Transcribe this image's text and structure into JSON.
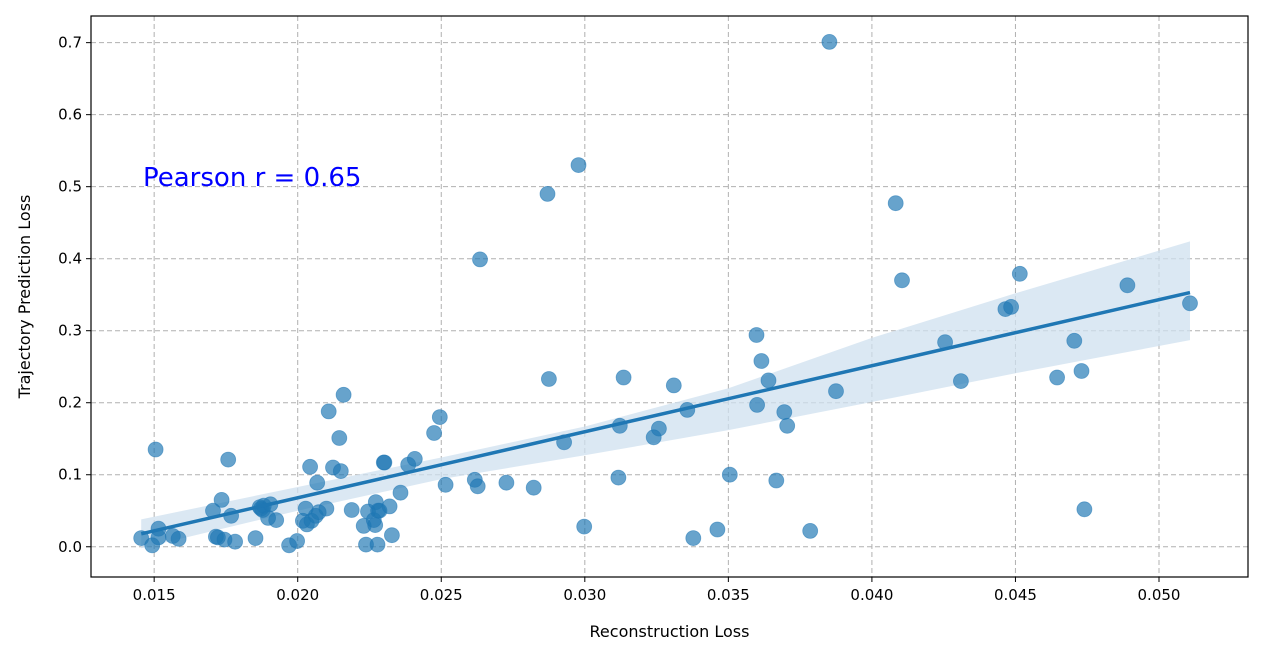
{
  "chart_data": {
    "type": "scatter",
    "title": "",
    "xlabel": "Reconstruction Loss",
    "ylabel": "Trajectory Prediction Loss",
    "xlim": [
      0.0128,
      0.0531
    ],
    "ylim": [
      -0.042,
      0.737
    ],
    "xticks": [
      "0.015",
      "0.020",
      "0.025",
      "0.030",
      "0.035",
      "0.040",
      "0.045",
      "0.050"
    ],
    "yticks": [
      "0.0",
      "0.1",
      "0.2",
      "0.3",
      "0.4",
      "0.5",
      "0.6",
      "0.7"
    ],
    "grid": true,
    "annotation": "Pearson r = 0.65",
    "colors": {
      "points": "#1f77b4",
      "regression_line": "#1f77b4",
      "confidence_band": "#cfe0ef",
      "annotation": "#0000ff",
      "grid": "#b0b0b0"
    },
    "series": [
      {
        "x": [
          0.01455,
          0.01493,
          0.01505,
          0.01515,
          0.01515,
          0.01565,
          0.01585,
          0.01705,
          0.01715,
          0.01722,
          0.01735,
          0.01745,
          0.01758,
          0.01768,
          0.01782,
          0.01853,
          0.01868,
          0.01872,
          0.01878,
          0.01882,
          0.01897,
          0.01905,
          0.01925,
          0.0197,
          0.01998,
          0.02018,
          0.02028,
          0.02032,
          0.02043,
          0.02048,
          0.02063,
          0.02068,
          0.02073,
          0.021,
          0.02108,
          0.02123,
          0.02145,
          0.0215,
          0.0216,
          0.02188,
          0.0223,
          0.02238,
          0.02245,
          0.02265,
          0.0227,
          0.02272,
          0.02278,
          0.0228,
          0.02285,
          0.023,
          0.02302,
          0.0232,
          0.02328,
          0.02358,
          0.02385,
          0.02408,
          0.02475,
          0.02495,
          0.02515,
          0.02617,
          0.02627,
          0.02635,
          0.02727,
          0.02822,
          0.0287,
          0.02875,
          0.02928,
          0.02978,
          0.02998,
          0.03117,
          0.03122,
          0.03135,
          0.0324,
          0.03258,
          0.0331,
          0.03357,
          0.03378,
          0.03462,
          0.03505,
          0.03598,
          0.036,
          0.03615,
          0.0364,
          0.03667,
          0.03695,
          0.03705,
          0.03785,
          0.03852,
          0.03875,
          0.04083,
          0.04105,
          0.04255,
          0.0431,
          0.04465,
          0.04485,
          0.04515,
          0.04645,
          0.04705,
          0.0473,
          0.0474,
          0.0489,
          0.05108
        ],
        "y": [
          0.012,
          0.002,
          0.135,
          0.013,
          0.025,
          0.015,
          0.011,
          0.05,
          0.014,
          0.013,
          0.065,
          0.01,
          0.121,
          0.043,
          0.007,
          0.012,
          0.055,
          0.053,
          0.051,
          0.057,
          0.04,
          0.059,
          0.037,
          0.002,
          0.008,
          0.036,
          0.053,
          0.031,
          0.111,
          0.036,
          0.043,
          0.089,
          0.048,
          0.053,
          0.188,
          0.11,
          0.151,
          0.105,
          0.211,
          0.051,
          0.029,
          0.003,
          0.049,
          0.037,
          0.03,
          0.062,
          0.003,
          0.05,
          0.05,
          0.117,
          0.117,
          0.056,
          0.016,
          0.075,
          0.114,
          0.122,
          0.158,
          0.18,
          0.086,
          0.093,
          0.084,
          0.399,
          0.089,
          0.082,
          0.49,
          0.233,
          0.145,
          0.53,
          0.028,
          0.096,
          0.168,
          0.235,
          0.152,
          0.164,
          0.224,
          0.19,
          0.012,
          0.024,
          0.1,
          0.294,
          0.197,
          0.258,
          0.231,
          0.092,
          0.187,
          0.168,
          0.022,
          0.701,
          0.216,
          0.477,
          0.37,
          0.284,
          0.23,
          0.33,
          0.333,
          0.379,
          0.235,
          0.286,
          0.244,
          0.052,
          0.363,
          0.338
        ]
      }
    ],
    "regression": {
      "x": [
        0.01455,
        0.05108
      ],
      "y": [
        0.018,
        0.353
      ]
    },
    "confidence_band": {
      "x": [
        0.01455,
        0.02,
        0.025,
        0.03,
        0.035,
        0.04,
        0.045,
        0.05108
      ],
      "lower": [
        -0.002,
        0.05,
        0.094,
        0.127,
        0.162,
        0.201,
        0.241,
        0.287
      ],
      "upper": [
        0.038,
        0.083,
        0.124,
        0.167,
        0.22,
        0.29,
        0.352,
        0.424
      ]
    }
  }
}
